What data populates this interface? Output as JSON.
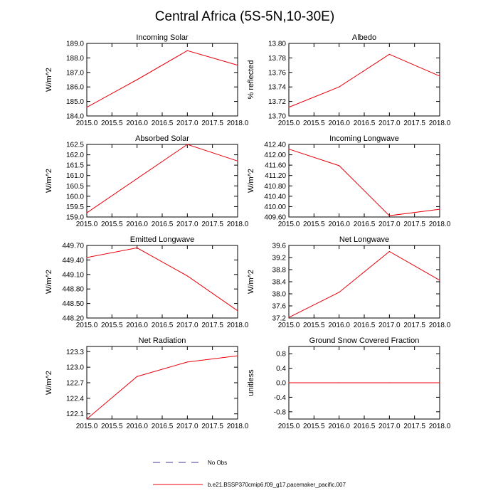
{
  "figure_title": "Central Africa (5S-5N,10-30E)",
  "legend": [
    {
      "label": "No Obs",
      "style": "dashed",
      "color": "#3b3b8f"
    },
    {
      "label": "b.e21.BSSP370cmip6.f09_g17.pacemaker_pacific.007",
      "style": "solid",
      "color": "#e8000b"
    }
  ],
  "chart_data": [
    {
      "type": "line",
      "title": "Incoming Solar",
      "xlabel": "",
      "ylabel": "W/m^2",
      "x": [
        2015,
        2016,
        2017,
        2018
      ],
      "xlim": [
        2015,
        2018
      ],
      "xticks": [
        "2015.0",
        "2015.5",
        "2016.0",
        "2016.5",
        "2017.0",
        "2017.5",
        "2018.0"
      ],
      "ylim": [
        184.0,
        189.0
      ],
      "yticks": [
        "184.0",
        "185.0",
        "186.0",
        "187.0",
        "188.0",
        "189.0"
      ],
      "series": [
        {
          "name": "b.e21.BSSP370cmip6.f09_g17.pacemaker_pacific.007",
          "values": [
            184.6,
            186.5,
            188.5,
            187.5
          ]
        }
      ]
    },
    {
      "type": "line",
      "title": "Albedo",
      "xlabel": "",
      "ylabel": "% reflected",
      "x": [
        2015,
        2016,
        2017,
        2018
      ],
      "xlim": [
        2015,
        2018
      ],
      "xticks": [
        "2015.0",
        "2015.5",
        "2016.0",
        "2016.5",
        "2017.0",
        "2017.5",
        "2018.0"
      ],
      "ylim": [
        13.7,
        13.8
      ],
      "yticks": [
        "13.70",
        "13.72",
        "13.74",
        "13.76",
        "13.78",
        "13.80"
      ],
      "series": [
        {
          "name": "b.e21.BSSP370cmip6.f09_g17.pacemaker_pacific.007",
          "values": [
            13.712,
            13.74,
            13.785,
            13.755
          ]
        }
      ]
    },
    {
      "type": "line",
      "title": "Absorbed Solar",
      "xlabel": "",
      "ylabel": "W/m^2",
      "x": [
        2015,
        2016,
        2017,
        2018
      ],
      "xlim": [
        2015,
        2018
      ],
      "xticks": [
        "2015.0",
        "2015.5",
        "2016.0",
        "2016.5",
        "2017.0",
        "2017.5",
        "2018.0"
      ],
      "ylim": [
        159.0,
        162.5
      ],
      "yticks": [
        "159.0",
        "159.5",
        "160.0",
        "160.5",
        "161.0",
        "161.5",
        "162.0",
        "162.5"
      ],
      "series": [
        {
          "name": "b.e21.BSSP370cmip6.f09_g17.pacemaker_pacific.007",
          "values": [
            159.2,
            160.85,
            162.5,
            161.7
          ]
        }
      ]
    },
    {
      "type": "line",
      "title": "Incoming Longwave",
      "xlabel": "",
      "ylabel": "W/m^2",
      "x": [
        2015,
        2016,
        2017,
        2018
      ],
      "xlim": [
        2015,
        2018
      ],
      "xticks": [
        "2015.0",
        "2015.5",
        "2016.0",
        "2016.5",
        "2017.0",
        "2017.5",
        "2018.0"
      ],
      "ylim": [
        409.6,
        412.4
      ],
      "yticks": [
        "409.60",
        "410.00",
        "410.40",
        "410.80",
        "411.20",
        "411.60",
        "412.00",
        "412.40"
      ],
      "series": [
        {
          "name": "b.e21.BSSP370cmip6.f09_g17.pacemaker_pacific.007",
          "values": [
            412.22,
            411.58,
            409.65,
            409.9
          ]
        }
      ]
    },
    {
      "type": "line",
      "title": "Emitted Longwave",
      "xlabel": "",
      "ylabel": "W/m^2",
      "x": [
        2015,
        2016,
        2017,
        2018
      ],
      "xlim": [
        2015,
        2018
      ],
      "xticks": [
        "2015.0",
        "2015.5",
        "2016.0",
        "2016.5",
        "2017.0",
        "2017.5",
        "2018.0"
      ],
      "ylim": [
        448.2,
        449.7
      ],
      "yticks": [
        "448.20",
        "448.50",
        "448.80",
        "449.10",
        "449.40",
        "449.70"
      ],
      "series": [
        {
          "name": "b.e21.BSSP370cmip6.f09_g17.pacemaker_pacific.007",
          "values": [
            449.45,
            449.65,
            449.07,
            448.35
          ]
        }
      ]
    },
    {
      "type": "line",
      "title": "Net Longwave",
      "xlabel": "",
      "ylabel": "W/m^2",
      "x": [
        2015,
        2016,
        2017,
        2018
      ],
      "xlim": [
        2015,
        2018
      ],
      "xticks": [
        "2015.0",
        "2015.5",
        "2016.0",
        "2016.5",
        "2017.0",
        "2017.5",
        "2018.0"
      ],
      "ylim": [
        37.2,
        39.6
      ],
      "yticks": [
        "37.2",
        "37.6",
        "38.0",
        "38.4",
        "38.8",
        "39.2",
        "39.6"
      ],
      "series": [
        {
          "name": "b.e21.BSSP370cmip6.f09_g17.pacemaker_pacific.007",
          "values": [
            37.22,
            38.05,
            39.4,
            38.45
          ]
        }
      ]
    },
    {
      "type": "line",
      "title": "Net Radiation",
      "xlabel": "",
      "ylabel": "W/m^2",
      "x": [
        2015,
        2016,
        2017,
        2018
      ],
      "xlim": [
        2015,
        2018
      ],
      "xticks": [
        "2015.0",
        "2015.5",
        "2016.0",
        "2016.5",
        "2017.0",
        "2017.5",
        "2018.0"
      ],
      "ylim": [
        122.0,
        123.4
      ],
      "yticks": [
        "122.1",
        "122.4",
        "122.7",
        "123.0",
        "123.3"
      ],
      "series": [
        {
          "name": "b.e21.BSSP370cmip6.f09_g17.pacemaker_pacific.007",
          "values": [
            122.0,
            122.82,
            123.1,
            123.22
          ]
        }
      ]
    },
    {
      "type": "line",
      "title": "Ground Snow Covered Fraction",
      "xlabel": "",
      "ylabel": "unitless",
      "x": [
        2015,
        2016,
        2017,
        2018
      ],
      "xlim": [
        2015,
        2018
      ],
      "xticks": [
        "2015.0",
        "2015.5",
        "2016.0",
        "2016.5",
        "2017.0",
        "2017.5",
        "2018.0"
      ],
      "ylim": [
        -1.0,
        1.0
      ],
      "yticks": [
        "-0.8",
        "-0.4",
        "0.0",
        "0.4",
        "0.8"
      ],
      "series": [
        {
          "name": "b.e21.BSSP370cmip6.f09_g17.pacemaker_pacific.007",
          "values": [
            0.0,
            0.0,
            0.0,
            0.0
          ]
        }
      ]
    }
  ]
}
